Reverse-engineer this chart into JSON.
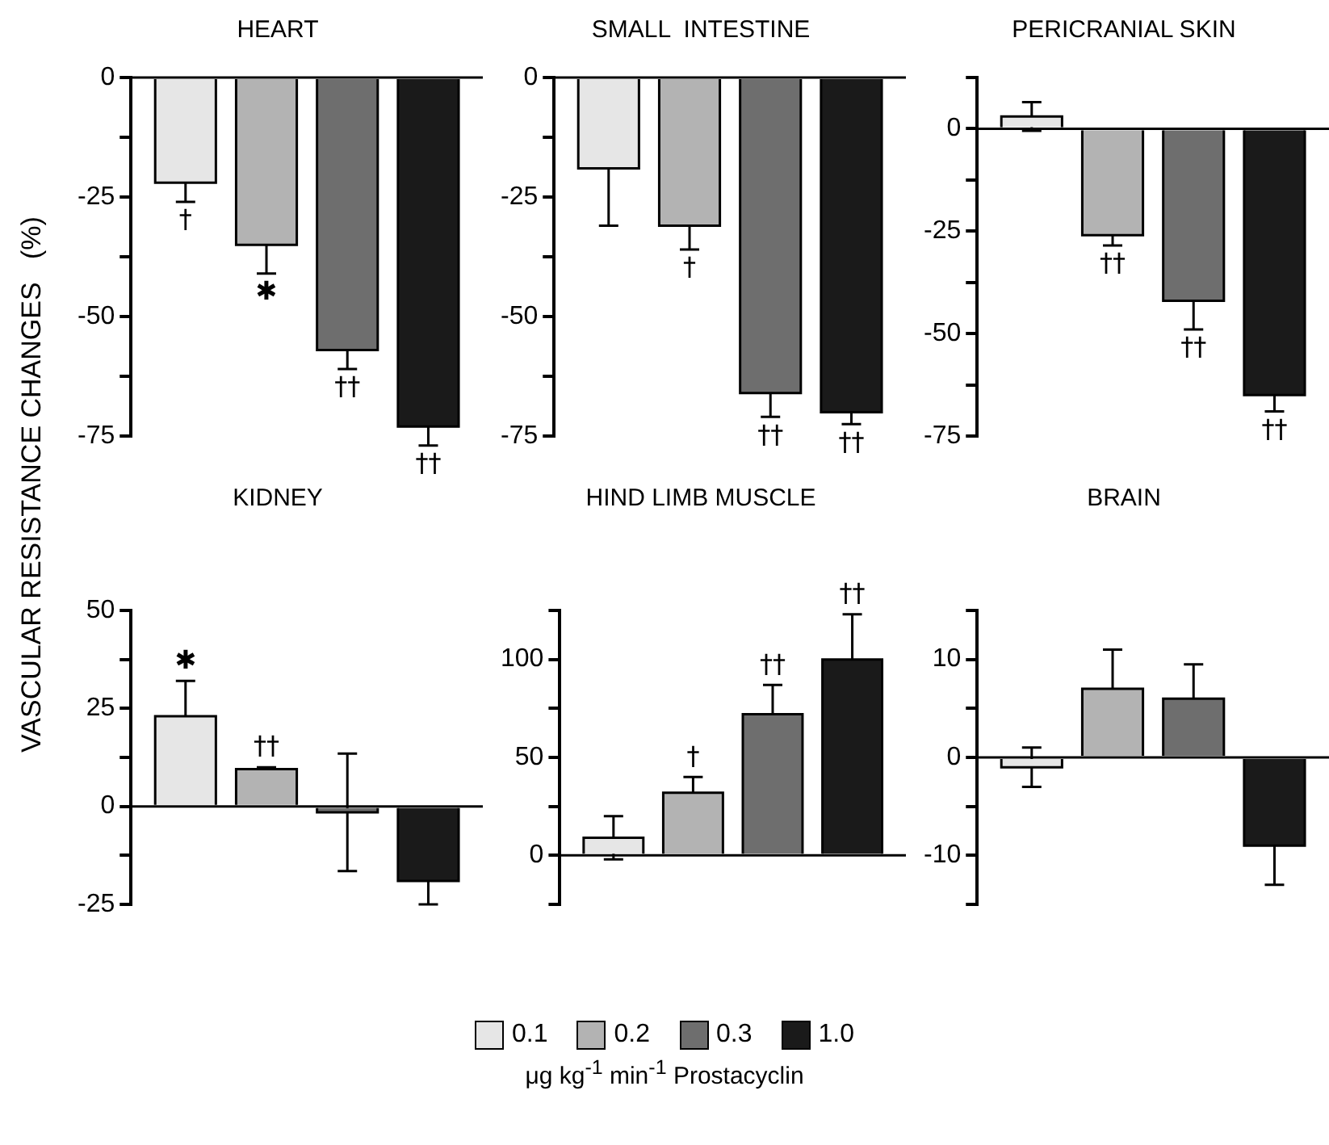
{
  "chart_data": [
    {
      "type": "bar",
      "title": "HEART",
      "ylabel": "VASCULAR RESISTANCE CHANGES   (%)",
      "categories": [
        null
      ],
      "ylim": [
        -75,
        0
      ],
      "yticks": [
        0,
        {
          "value": -12.5,
          "label": null
        },
        -25,
        {
          "value": -37.5,
          "label": null
        },
        -50,
        {
          "value": -62.5,
          "label": null
        },
        -75
      ],
      "grid": false,
      "tick_labels": "y",
      "ref_lines": [
        {
          "axis": "y",
          "value": 0
        }
      ],
      "series": [
        {
          "color": "#e6e6e6",
          "values": [
            -22
          ],
          "errors": [
            4
          ],
          "value_labels": [
            "†"
          ]
        },
        {
          "color": "#b3b3b3",
          "values": [
            -35
          ],
          "errors": [
            6
          ],
          "value_labels": [
            "✱"
          ]
        },
        {
          "color": "#6e6e6e",
          "values": [
            -57
          ],
          "errors": [
            4
          ],
          "value_labels": [
            "††"
          ]
        },
        {
          "color": "#1a1a1a",
          "values": [
            -73
          ],
          "errors": [
            4
          ],
          "value_labels": [
            "††"
          ]
        }
      ]
    },
    {
      "type": "bar",
      "title": "SMALL  INTESTINE",
      "categories": [
        null
      ],
      "ylim": [
        -75,
        0
      ],
      "yticks": [
        0,
        {
          "value": -12.5,
          "label": null
        },
        -25,
        {
          "value": -37.5,
          "label": null
        },
        -50,
        {
          "value": -62.5,
          "label": null
        },
        -75
      ],
      "grid": false,
      "tick_labels": "y",
      "ref_lines": [
        {
          "axis": "y",
          "value": 0
        }
      ],
      "series": [
        {
          "color": "#e6e6e6",
          "values": [
            -19
          ],
          "errors": [
            12
          ],
          "value_labels": [
            null
          ]
        },
        {
          "color": "#b3b3b3",
          "values": [
            -31
          ],
          "errors": [
            5
          ],
          "value_labels": [
            "†"
          ]
        },
        {
          "color": "#6e6e6e",
          "values": [
            -66
          ],
          "errors": [
            5
          ],
          "value_labels": [
            "††"
          ]
        },
        {
          "color": "#1a1a1a",
          "values": [
            -70
          ],
          "errors": [
            2.5
          ],
          "value_labels": [
            "††"
          ]
        }
      ]
    },
    {
      "type": "bar",
      "title": "PERICRANIAL SKIN",
      "categories": [
        null
      ],
      "ylim": [
        -75,
        12.5
      ],
      "yticks": [
        {
          "value": 12.5,
          "label": null
        },
        0,
        {
          "value": -12.5,
          "label": null
        },
        -25,
        {
          "value": -37.5,
          "label": null
        },
        -50,
        {
          "value": -62.5,
          "label": null
        },
        -75
      ],
      "grid": false,
      "tick_labels": "y",
      "ref_lines": [
        {
          "axis": "y",
          "value": 0
        }
      ],
      "series": [
        {
          "color": "#e6e6e6",
          "values": [
            3
          ],
          "errors": [
            3.5
          ],
          "value_labels": [
            null
          ]
        },
        {
          "color": "#b3b3b3",
          "values": [
            -26
          ],
          "errors": [
            2.5
          ],
          "value_labels": [
            "††"
          ]
        },
        {
          "color": "#6e6e6e",
          "values": [
            -42
          ],
          "errors": [
            7
          ],
          "value_labels": [
            "††"
          ]
        },
        {
          "color": "#1a1a1a",
          "values": [
            -65
          ],
          "errors": [
            4
          ],
          "value_labels": [
            "††"
          ]
        }
      ]
    },
    {
      "type": "bar",
      "title": "KIDNEY",
      "categories": [
        null
      ],
      "ylim": [
        -25,
        50
      ],
      "yticks": [
        50,
        {
          "value": 37.5,
          "label": null
        },
        25,
        {
          "value": 12.5,
          "label": null
        },
        0,
        {
          "value": -12.5,
          "label": null
        },
        -25
      ],
      "grid": false,
      "tick_labels": "y",
      "ref_lines": [
        {
          "axis": "y",
          "value": 0
        }
      ],
      "series": [
        {
          "color": "#e6e6e6",
          "values": [
            23
          ],
          "errors": [
            9
          ],
          "value_labels": [
            "✱"
          ]
        },
        {
          "color": "#b3b3b3",
          "values": [
            9.5
          ],
          "errors": [
            0.5
          ],
          "value_labels": [
            "††"
          ]
        },
        {
          "color": "#6e6e6e",
          "values": [
            -1.5
          ],
          "errors": [
            15
          ],
          "value_labels": [
            null
          ]
        },
        {
          "color": "#1a1a1a",
          "values": [
            -19
          ],
          "errors": [
            6
          ],
          "value_labels": [
            null
          ]
        }
      ]
    },
    {
      "type": "bar",
      "title": "HIND LIMB MUSCLE",
      "categories": [
        null
      ],
      "ylim": [
        -25,
        125
      ],
      "yticks": [
        {
          "value": 125,
          "label": null
        },
        100,
        {
          "value": 75,
          "label": null
        },
        50,
        {
          "value": 25,
          "label": null
        },
        0,
        {
          "value": -25,
          "label": null
        }
      ],
      "grid": false,
      "tick_labels": "y",
      "ref_lines": [
        {
          "axis": "y",
          "value": 0
        }
      ],
      "series": [
        {
          "color": "#e6e6e6",
          "values": [
            9
          ],
          "errors": [
            11
          ],
          "value_labels": [
            null
          ]
        },
        {
          "color": "#b3b3b3",
          "values": [
            32
          ],
          "errors": [
            8
          ],
          "value_labels": [
            "†"
          ]
        },
        {
          "color": "#6e6e6e",
          "values": [
            72
          ],
          "errors": [
            15
          ],
          "value_labels": [
            "††"
          ]
        },
        {
          "color": "#1a1a1a",
          "values": [
            100
          ],
          "errors": [
            23
          ],
          "value_labels": [
            "††"
          ]
        }
      ]
    },
    {
      "type": "bar",
      "title": "BRAIN",
      "categories": [
        null
      ],
      "ylim": [
        -15,
        15
      ],
      "yticks": [
        {
          "value": 15,
          "label": null
        },
        10,
        {
          "value": 5,
          "label": null
        },
        0,
        {
          "value": -5,
          "label": null
        },
        -10,
        {
          "value": -15,
          "label": null
        }
      ],
      "grid": false,
      "tick_labels": "y",
      "ref_lines": [
        {
          "axis": "y",
          "value": 0
        }
      ],
      "legend": "bottom",
      "legend_title": "μg kg$^{-1}$ min$^{-1}$ Prostacyclin",
      "series": [
        {
          "name": "0.1",
          "color": "#e6e6e6",
          "values": [
            -1
          ],
          "errors": [
            2
          ]
        },
        {
          "name": "0.2",
          "color": "#b3b3b3",
          "values": [
            7
          ],
          "errors": [
            4
          ]
        },
        {
          "name": "0.3",
          "color": "#6e6e6e",
          "values": [
            6
          ],
          "errors": [
            3.5
          ]
        },
        {
          "name": "1.0",
          "color": "#1a1a1a",
          "values": [
            -9
          ],
          "errors": [
            4
          ]
        }
      ]
    }
  ]
}
